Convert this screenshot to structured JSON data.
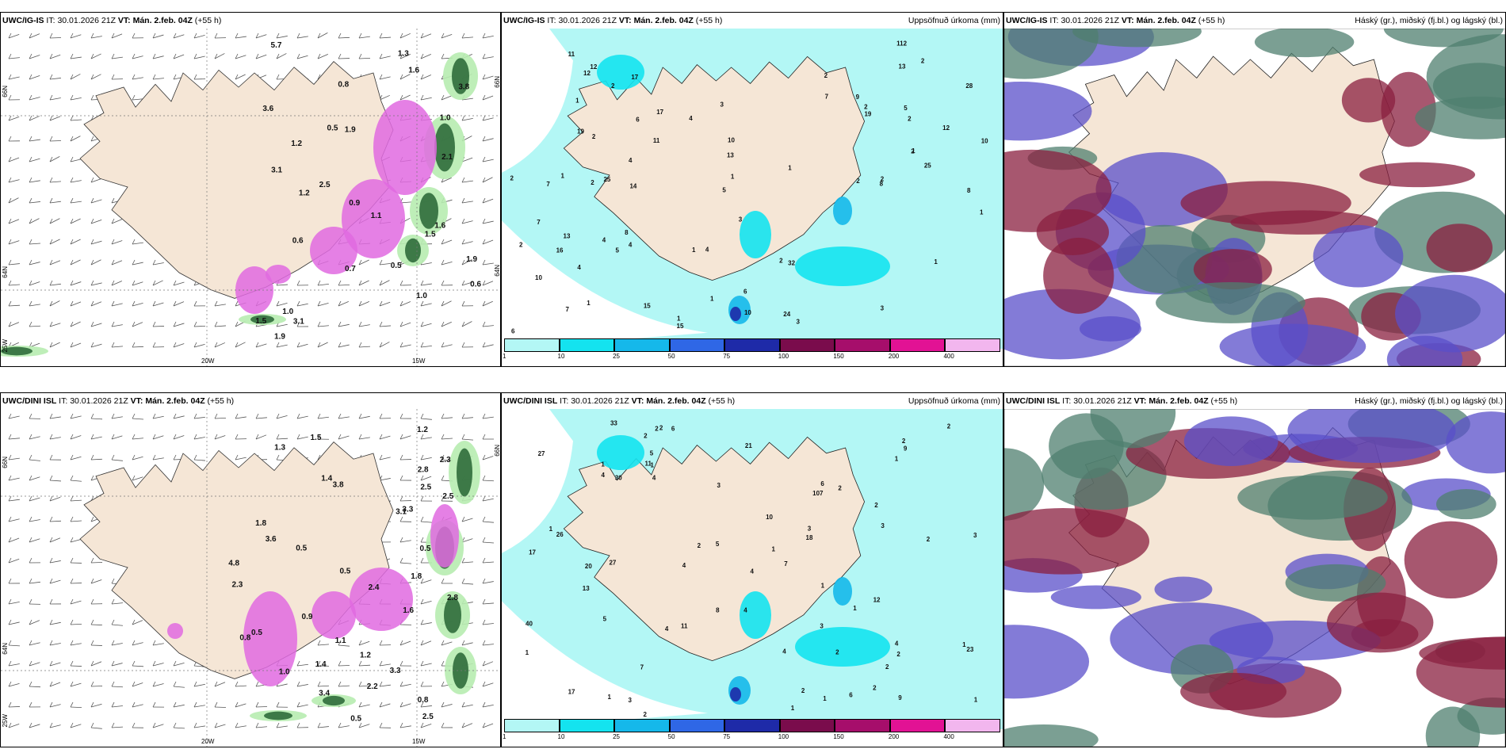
{
  "panels": [
    {
      "id": "top-left",
      "model": "UWC/IG-IS",
      "init_label": "IT:",
      "init_time": "30.01.2026 21Z",
      "valid_label": "VT:",
      "valid_time": "Mán. 2.feb. 04Z",
      "lead": "(+55 h)",
      "right_title": "",
      "kind": "wind",
      "labels": [
        "5.7",
        "1.3",
        "1.6",
        "3.8",
        "0.8",
        "3.6",
        "1.0",
        "0.5",
        "1.9",
        "1.2",
        "2.1",
        "3.1",
        "2.5",
        "1.2",
        "0.9",
        "1.1",
        "1.6",
        "1.5",
        "0.6",
        "1.9",
        "0.7",
        "0.5",
        "0.6",
        "1.0",
        "1.0",
        "3.1",
        "1.5",
        "1.9"
      ],
      "lon_ticks": [
        "20W",
        "15W"
      ],
      "lat_ticks": [
        "66N",
        "64N",
        "25W"
      ],
      "lat_right": [
        "66N",
        "64N"
      ]
    },
    {
      "id": "top-mid",
      "model": "UWC/IG-IS",
      "init_label": "IT:",
      "init_time": "30.01.2026 21Z",
      "valid_label": "VT:",
      "valid_time": "Mán. 2.feb. 04Z",
      "lead": "(+55 h)",
      "right_title": "Uppsöfnuð úrkoma (mm)",
      "kind": "precip",
      "labels": [
        "2",
        "3",
        "2",
        "3",
        "6",
        "4",
        "5",
        "4",
        "4",
        "8",
        "5",
        "2",
        "1",
        "12",
        "7",
        "28",
        "32",
        "10",
        "1",
        "1",
        "2",
        "1",
        "8",
        "8",
        "1",
        "1",
        "1",
        "2",
        "2",
        "2",
        "1",
        "10",
        "15",
        "9",
        "13",
        "11",
        "12",
        "7",
        "2",
        "1",
        "2",
        "2",
        "1",
        "14",
        "16",
        "10",
        "12",
        "11",
        "2",
        "2",
        "4",
        "1",
        "17",
        "112",
        "25",
        "25",
        "19",
        "13",
        "19",
        "24",
        "17",
        "15",
        "3",
        "3",
        "4",
        "7",
        "5",
        "7",
        "13",
        "6",
        "2",
        "10",
        "4",
        "6"
      ],
      "cbar_ticks": [
        "1",
        "10",
        "25",
        "50",
        "75",
        "100",
        "150",
        "200",
        "400"
      ],
      "cbar_colors": [
        "#b3f7f5",
        "#14e3ef",
        "#15b8ea",
        "#2f67e6",
        "#1e2aa8",
        "#7a0c4c",
        "#a60e6b",
        "#e21294",
        "#f2b6ee"
      ]
    },
    {
      "id": "top-right",
      "model": "UWC/IG-IS",
      "init_label": "IT:",
      "init_time": "30.01.2026 21Z",
      "valid_label": "VT:",
      "valid_time": "Mán. 2.feb. 04Z",
      "lead": "(+55 h)",
      "right_title": "Háský (gr.), miðský (fj.bl.) og lágský (bl.)",
      "kind": "cloud",
      "labels": []
    },
    {
      "id": "bottom-left",
      "model": "UWC/DINI ISL",
      "init_label": "IT:",
      "init_time": "30.01.2026 21Z",
      "valid_label": "VT:",
      "valid_time": "Mán. 2.feb. 04Z",
      "lead": "(+55 h)",
      "right_title": "",
      "kind": "wind",
      "labels": [
        "1.2",
        "1.5",
        "1.3",
        "2.3",
        "2.8",
        "1.4",
        "3.8",
        "2.5",
        "2.5",
        "3.3",
        "3.1",
        "1.8",
        "3.6",
        "0.5",
        "0.5",
        "4.8",
        "0.5",
        "1.8",
        "2.4",
        "2.3",
        "2.8",
        "0.9",
        "1.6",
        "0.5",
        "1.1",
        "0.8",
        "1.2",
        "1.4",
        "1.0",
        "3.3",
        "3.4",
        "2.2",
        "0.8",
        "2.5",
        "0.5"
      ],
      "lon_ticks": [
        "20W",
        "15W"
      ],
      "lat_ticks": [
        "66N",
        "64N",
        "25W"
      ],
      "lat_right": [
        "66N"
      ]
    },
    {
      "id": "bottom-mid",
      "model": "UWC/DINI ISL",
      "init_label": "IT:",
      "init_time": "30.01.2026 21Z",
      "valid_label": "VT:",
      "valid_time": "Mán. 2.feb. 04Z",
      "lead": "(+55 h)",
      "right_title": "Uppsöfnuð úrkoma (mm)",
      "kind": "precip",
      "labels": [
        "3",
        "2",
        "3",
        "2",
        "4",
        "3",
        "2",
        "2",
        "3",
        "13",
        "11",
        "40",
        "17",
        "12",
        "33",
        "4",
        "2",
        "4",
        "2",
        "2",
        "1",
        "2",
        "3",
        "2",
        "1",
        "2",
        "7",
        "6",
        "2",
        "5",
        "4",
        "6",
        "1",
        "1",
        "1",
        "1",
        "1",
        "1",
        "4",
        "2",
        "3",
        "2",
        "1",
        "1",
        "1",
        "1",
        "2",
        "30",
        "107",
        "27",
        "18",
        "23",
        "20",
        "17",
        "21",
        "26",
        "27",
        "7",
        "4",
        "2",
        "10",
        "11",
        "4",
        "6",
        "5",
        "9",
        "8",
        "5",
        "9",
        "1",
        "4"
      ],
      "cbar_ticks": [
        "1",
        "10",
        "25",
        "50",
        "75",
        "100",
        "150",
        "200",
        "400"
      ],
      "cbar_colors": [
        "#b3f7f5",
        "#14e3ef",
        "#15b8ea",
        "#2f67e6",
        "#1e2aa8",
        "#7a0c4c",
        "#a60e6b",
        "#e21294",
        "#f2b6ee"
      ]
    },
    {
      "id": "bottom-right",
      "model": "UWC/DINI ISL",
      "init_label": "IT:",
      "init_time": "30.01.2026 21Z",
      "valid_label": "VT:",
      "valid_time": "Mán. 2.feb. 04Z",
      "lead": "(+55 h)",
      "right_title": "Háský (gr.), miðský (fj.bl.) og lágský (bl.)",
      "kind": "cloud",
      "labels": []
    }
  ],
  "colors": {
    "land": "#f5e6d6",
    "precip_light": "#b3f7f5",
    "snow_pink": "#e06ae0",
    "green_dark": "#2f6b3b",
    "green_light": "#b7ecb0",
    "cloud_high": "#4f7f6f",
    "cloud_mid": "#5a4fc9",
    "cloud_low": "#8a1f3f"
  }
}
